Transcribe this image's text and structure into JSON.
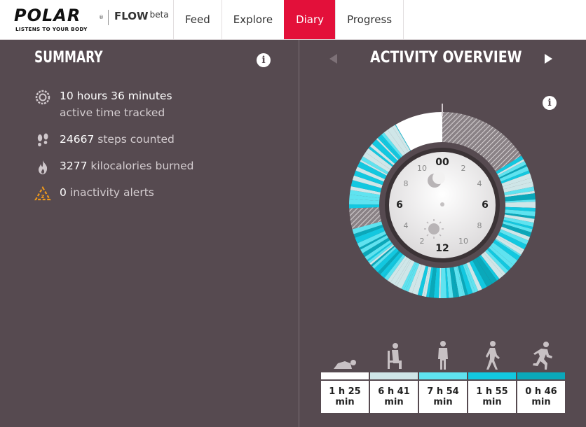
{
  "header": {
    "brand": "POLAR",
    "brand_reg": "®",
    "tagline": "LISTENS TO YOUR BODY",
    "product": "FLOW",
    "product_suffix": "beta",
    "tabs": [
      {
        "label": "Feed",
        "active": false
      },
      {
        "label": "Explore",
        "active": false
      },
      {
        "label": "Diary",
        "active": true
      },
      {
        "label": "Progress",
        "active": false
      }
    ],
    "accent_color": "#e3103a"
  },
  "summary": {
    "title": "SUMMARY",
    "info_icon": "i",
    "active_time": {
      "value": "10 hours 36 minutes",
      "sub": "active time tracked",
      "icon": "activity-ring-icon"
    },
    "steps": {
      "value": "24667",
      "label": "steps counted",
      "icon": "footprints-icon"
    },
    "calories": {
      "value": "3277",
      "label": "kilocalories burned",
      "icon": "flame-icon"
    },
    "inactivity": {
      "value": "0",
      "label": "inactivity alerts",
      "icon": "inactivity-warning-icon"
    }
  },
  "overview": {
    "title": "ACTIVITY OVERVIEW",
    "info_icon": "i",
    "dial_labels": {
      "top": "00",
      "bottom": "12",
      "left": "6",
      "right": "6",
      "minor": [
        "2",
        "4",
        "8",
        "10",
        "2",
        "4",
        "8",
        "10"
      ]
    },
    "legend": [
      {
        "icon": "resting-icon",
        "color": "#ffffff",
        "hours": "1 h 25",
        "unit": "min"
      },
      {
        "icon": "sitting-icon",
        "color": "#cfe6e8",
        "hours": "6 h 41",
        "unit": "min"
      },
      {
        "icon": "standing-icon",
        "color": "#5fe3f0",
        "hours": "7 h 54",
        "unit": "min"
      },
      {
        "icon": "walking-icon",
        "color": "#12c8e0",
        "hours": "1 h 55",
        "unit": "min"
      },
      {
        "icon": "running-icon",
        "color": "#0aa8ba",
        "hours": "0 h 46",
        "unit": "min"
      }
    ]
  }
}
